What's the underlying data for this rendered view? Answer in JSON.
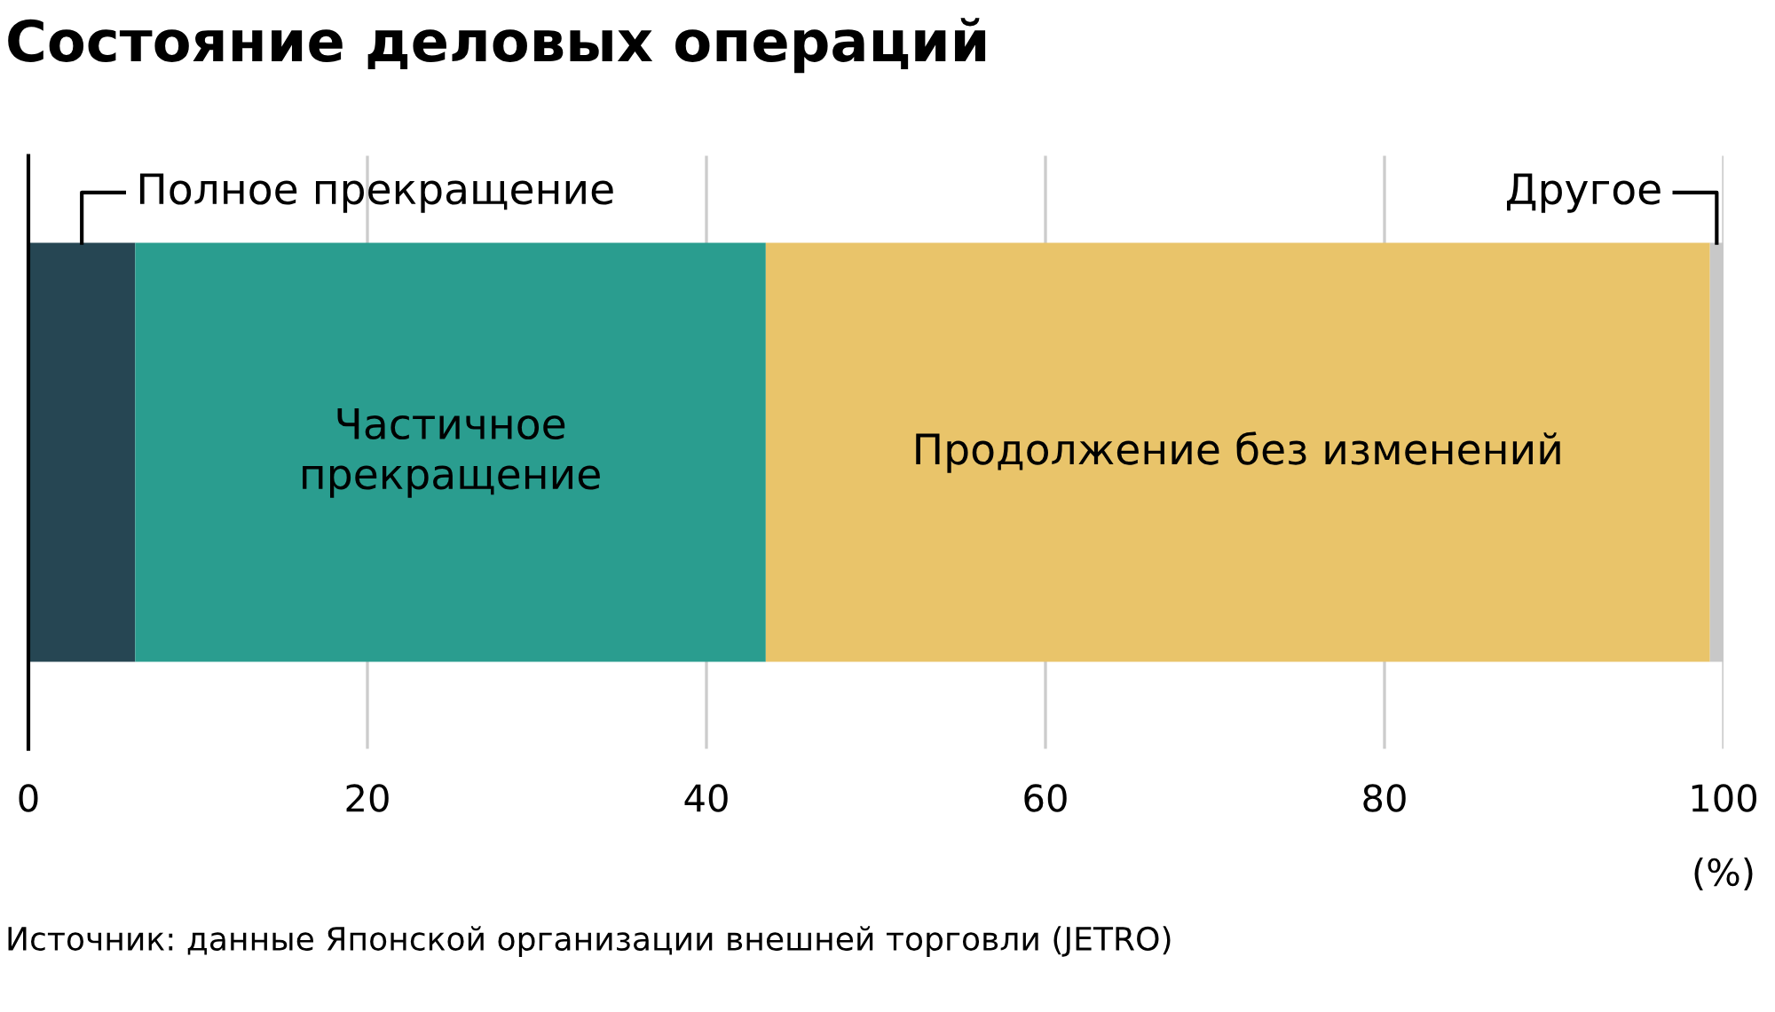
{
  "chart_data": {
    "type": "bar",
    "orientation": "horizontal",
    "stacked": true,
    "title": "Состояние деловых операций",
    "xlabel": "(%)",
    "categories": [
      null
    ],
    "series": [
      {
        "name": "Полное прекращение",
        "color": "#264653",
        "values": [
          6.3
        ]
      },
      {
        "name": "Частичное\nпрекращение",
        "color": "#2a9d8f",
        "values": [
          37.2
        ]
      },
      {
        "name": "Продолжение без изменений",
        "color": "#e9c46a",
        "values": [
          55.7
        ]
      },
      {
        "name": "Другое",
        "color": "#c8c8c8",
        "values": [
          0.8
        ]
      }
    ],
    "xlim": [
      0,
      100
    ],
    "xticks": [
      0,
      20,
      40,
      60,
      80,
      100
    ],
    "grid": "x",
    "legend": false,
    "annotations": [
      "Источник: данные Японской организации внешней торговли (JETRO)"
    ]
  }
}
